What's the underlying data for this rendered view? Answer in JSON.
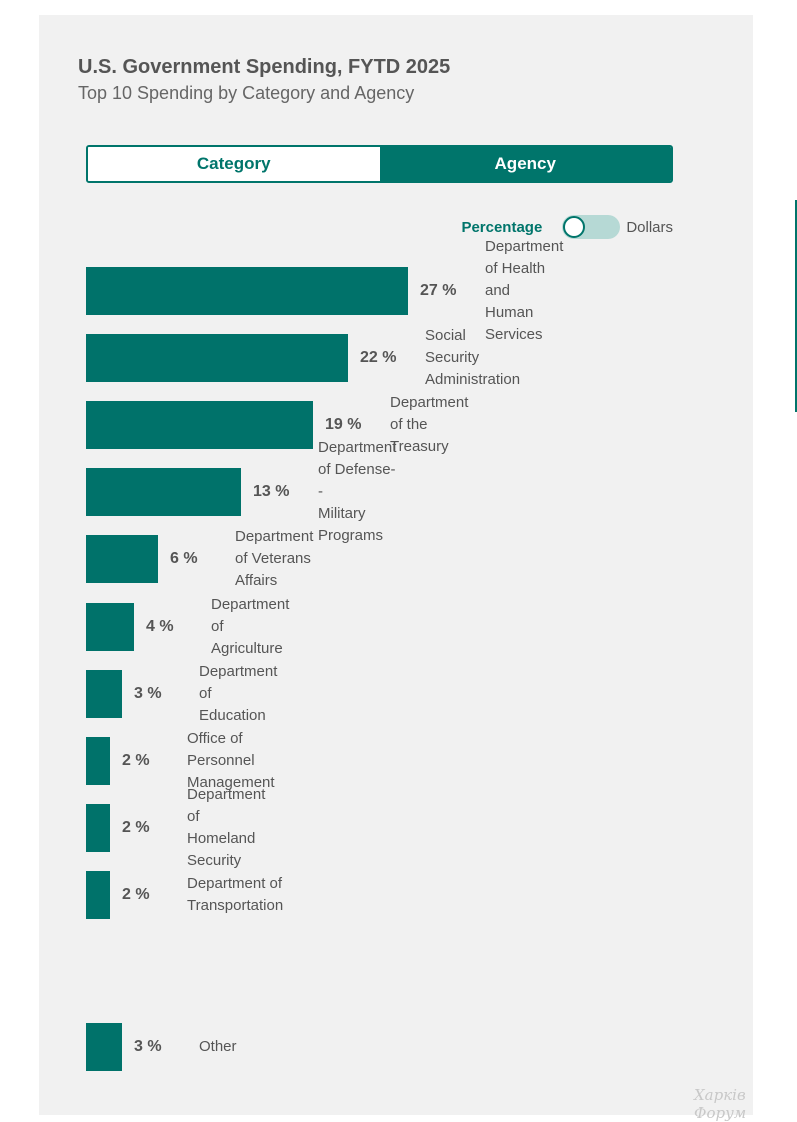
{
  "header": {
    "title": "U.S. Government Spending, FYTD 2025",
    "subtitle": "Top 10 Spending by Category and Agency"
  },
  "tabs": [
    {
      "label": "Category",
      "active": false
    },
    {
      "label": "Agency",
      "active": true
    }
  ],
  "toggle": {
    "left_label": "Percentage",
    "right_label": "Dollars",
    "selected": "Percentage"
  },
  "colors": {
    "bar": "#00726a",
    "accent": "#00756b",
    "toggle_track": "#b6d9d5"
  },
  "chart_data": {
    "type": "bar",
    "orientation": "horizontal",
    "unit": "%",
    "categories": [
      "Department of Health and Human Services",
      "Social Security Administration",
      "Department of the Treasury",
      "Department of Defense--Military Programs",
      "Department of Veterans Affairs",
      "Department of Agriculture",
      "Department of Education",
      "Office of Personnel Management",
      "Department of Homeland Security",
      "Department of Transportation",
      "Other"
    ],
    "values": [
      27,
      22,
      19,
      13,
      6,
      4,
      3,
      2,
      2,
      2,
      3
    ],
    "value_labels": [
      "27 %",
      "22 %",
      "19 %",
      "13 %",
      "6 %",
      "4 %",
      "3 %",
      "2 %",
      "2 %",
      "2 %",
      "3 %"
    ],
    "label_lines": [
      [
        "Department of Health and",
        "Human Services"
      ],
      [
        "Social Security Administration"
      ],
      [
        "Department of the Treasury"
      ],
      [
        "Department of Defense--",
        "Military Programs"
      ],
      [
        "Department of Veterans Affairs"
      ],
      [
        "Department of Agriculture"
      ],
      [
        "Department of Education"
      ],
      [
        "Office of Personnel",
        "Management"
      ],
      [
        "Department of Homeland",
        "Security"
      ],
      [
        "Department of Transportation"
      ],
      [
        "Other"
      ]
    ]
  },
  "watermark": "Харків Форум"
}
